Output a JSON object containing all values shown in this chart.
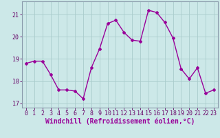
{
  "x": [
    0,
    1,
    2,
    3,
    4,
    5,
    6,
    7,
    8,
    9,
    10,
    11,
    12,
    13,
    14,
    15,
    16,
    17,
    18,
    19,
    20,
    21,
    22,
    23
  ],
  "y": [
    18.8,
    18.9,
    18.9,
    18.3,
    17.6,
    17.6,
    17.55,
    17.2,
    18.6,
    19.45,
    20.6,
    20.75,
    20.2,
    19.85,
    19.8,
    21.2,
    21.1,
    20.65,
    19.95,
    18.55,
    18.1,
    18.6,
    17.45,
    17.6
  ],
  "line_color": "#990099",
  "marker": "D",
  "marker_size": 2.0,
  "bg_color": "#cce8e8",
  "grid_color": "#aacccc",
  "xlabel": "Windchill (Refroidissement éolien,°C)",
  "xlabel_color": "#990099",
  "ylim": [
    16.8,
    21.6
  ],
  "yticks": [
    17,
    18,
    19,
    20,
    21
  ],
  "xticks": [
    0,
    1,
    2,
    3,
    4,
    5,
    6,
    7,
    8,
    9,
    10,
    11,
    12,
    13,
    14,
    15,
    16,
    17,
    18,
    19,
    20,
    21,
    22,
    23
  ],
  "tick_color": "#660066",
  "tick_fontsize": 6.0,
  "xlabel_fontsize": 7.0,
  "line_width": 1.0
}
